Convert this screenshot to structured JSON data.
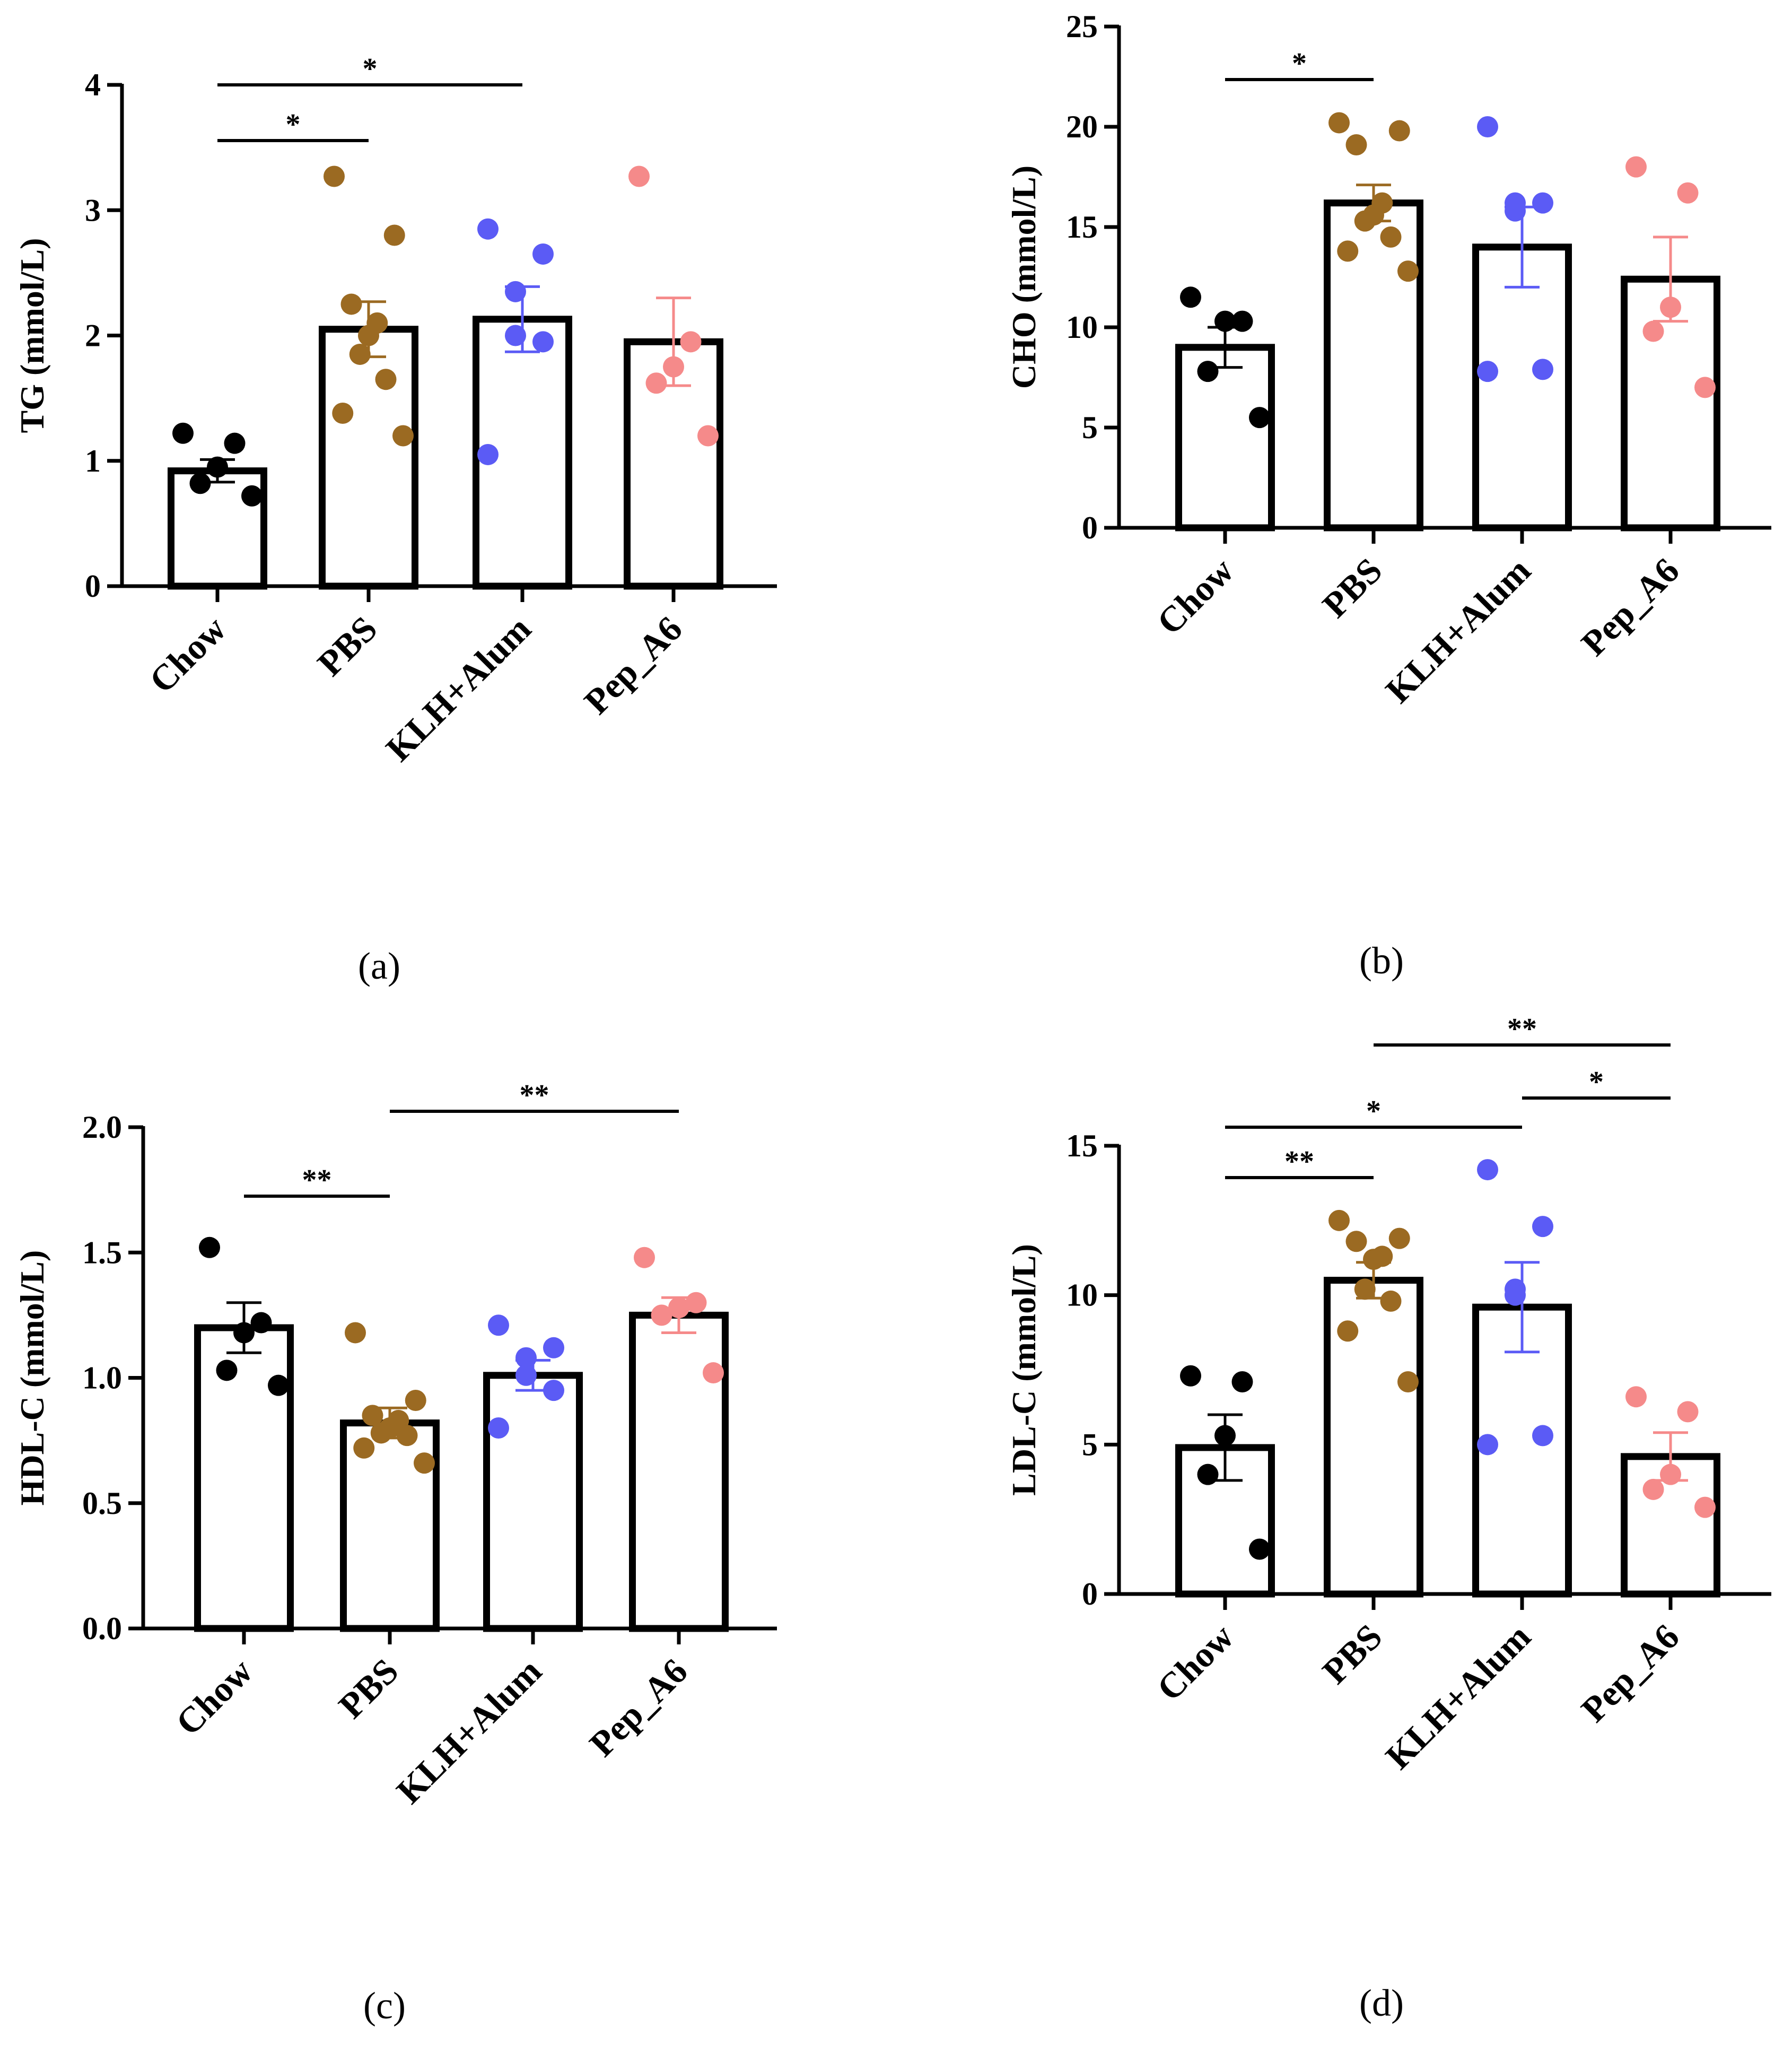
{
  "colors": {
    "Chow": "#000000",
    "PBS": "#9b6a22",
    "KLH+Alum": "#5b5bf5",
    "Pep_A6": "#f58a8a",
    "bar_edge": "#000000",
    "bar_fill": "#ffffff"
  },
  "chart_data": [
    {
      "panel": "a",
      "caption": "(a)",
      "type": "bar",
      "ylabel": "TG (mmol/L)",
      "ylim": [
        0,
        4
      ],
      "yticks": [
        0,
        1,
        2,
        3,
        4
      ],
      "yticklabels": [
        "0",
        "1",
        "2",
        "3",
        "4"
      ],
      "categories": [
        "Chow",
        "PBS",
        "KLH+Alum",
        "Pep_A6"
      ],
      "means": [
        0.92,
        2.05,
        2.13,
        1.95
      ],
      "sem": [
        0.09,
        0.22,
        0.26,
        0.35
      ],
      "points": [
        [
          1.22,
          1.14,
          0.95,
          0.82,
          0.72
        ],
        [
          3.27,
          2.8,
          2.25,
          2.1,
          2.0,
          1.85,
          1.65,
          1.38,
          1.2
        ],
        [
          2.85,
          2.65,
          2.35,
          2.0,
          1.95,
          1.05
        ],
        [
          3.27,
          1.95,
          1.75,
          1.62,
          1.2
        ]
      ],
      "significance": [
        {
          "from": "Chow",
          "to": "PBS",
          "label": "*"
        },
        {
          "from": "Chow",
          "to": "KLH+Alum",
          "label": "*"
        }
      ]
    },
    {
      "panel": "b",
      "caption": "(b)",
      "type": "bar",
      "ylabel": "CHO (mmol/L)",
      "ylim": [
        0,
        25
      ],
      "yticks": [
        0,
        5,
        10,
        15,
        20,
        25
      ],
      "yticklabels": [
        "0",
        "5",
        "10",
        "15",
        "20",
        "25"
      ],
      "categories": [
        "Chow",
        "PBS",
        "KLH+Alum",
        "Pep_A6"
      ],
      "means": [
        9.0,
        16.2,
        14.0,
        12.4
      ],
      "sem": [
        1.0,
        0.9,
        2.0,
        2.1
      ],
      "points": [
        [
          11.5,
          10.3,
          10.3,
          7.8,
          5.5
        ],
        [
          20.2,
          19.8,
          19.1,
          16.2,
          15.6,
          15.3,
          14.5,
          13.8,
          12.8
        ],
        [
          20.0,
          16.2,
          16.2,
          15.8,
          7.9,
          7.8
        ],
        [
          18.0,
          16.7,
          11.0,
          9.8,
          7.0
        ]
      ],
      "significance": [
        {
          "from": "Chow",
          "to": "PBS",
          "label": "*"
        }
      ]
    },
    {
      "panel": "c",
      "caption": "(c)",
      "type": "bar",
      "ylabel": "HDL-C (mmol/L)",
      "ylim": [
        0,
        2
      ],
      "yticks": [
        0,
        0.5,
        1,
        1.5,
        2
      ],
      "yticklabels": [
        "0.0",
        "0.5",
        "1.0",
        "1.5",
        "2.0"
      ],
      "categories": [
        "Chow",
        "PBS",
        "KLH+Alum",
        "Pep_A6"
      ],
      "means": [
        1.2,
        0.82,
        1.01,
        1.25
      ],
      "sem": [
        0.1,
        0.06,
        0.06,
        0.07
      ],
      "points": [
        [
          1.52,
          1.22,
          1.18,
          1.03,
          0.97
        ],
        [
          1.18,
          0.91,
          0.85,
          0.83,
          0.8,
          0.78,
          0.77,
          0.72,
          0.66
        ],
        [
          1.21,
          1.12,
          1.08,
          1.01,
          0.95,
          0.8
        ],
        [
          1.48,
          1.3,
          1.28,
          1.25,
          1.02
        ]
      ],
      "significance": [
        {
          "from": "Chow",
          "to": "PBS",
          "label": "**"
        },
        {
          "from": "PBS",
          "to": "Pep_A6",
          "label": "**"
        }
      ]
    },
    {
      "panel": "d",
      "caption": "(d)",
      "type": "bar",
      "ylabel": "LDL-C (mmol/L)",
      "ylim": [
        0,
        15
      ],
      "yticks": [
        0,
        5,
        10,
        15
      ],
      "yticklabels": [
        "0",
        "5",
        "10",
        "15"
      ],
      "categories": [
        "Chow",
        "PBS",
        "KLH+Alum",
        "Pep_A6"
      ],
      "means": [
        4.9,
        10.5,
        9.6,
        4.6
      ],
      "sem": [
        1.1,
        0.6,
        1.5,
        0.8
      ],
      "points": [
        [
          7.3,
          7.1,
          5.3,
          4.0,
          1.5
        ],
        [
          12.5,
          11.9,
          11.8,
          11.3,
          11.2,
          10.2,
          9.8,
          8.8,
          7.1
        ],
        [
          14.2,
          12.3,
          10.2,
          10.0,
          5.3,
          5.0
        ],
        [
          6.6,
          6.1,
          4.0,
          3.5,
          2.9
        ]
      ],
      "significance": [
        {
          "from": "Chow",
          "to": "PBS",
          "label": "**"
        },
        {
          "from": "Chow",
          "to": "KLH+Alum",
          "label": "*"
        },
        {
          "from": "KLH+Alum",
          "to": "Pep_A6",
          "label": "*"
        },
        {
          "from": "PBS",
          "to": "Pep_A6",
          "label": "**"
        }
      ]
    }
  ]
}
